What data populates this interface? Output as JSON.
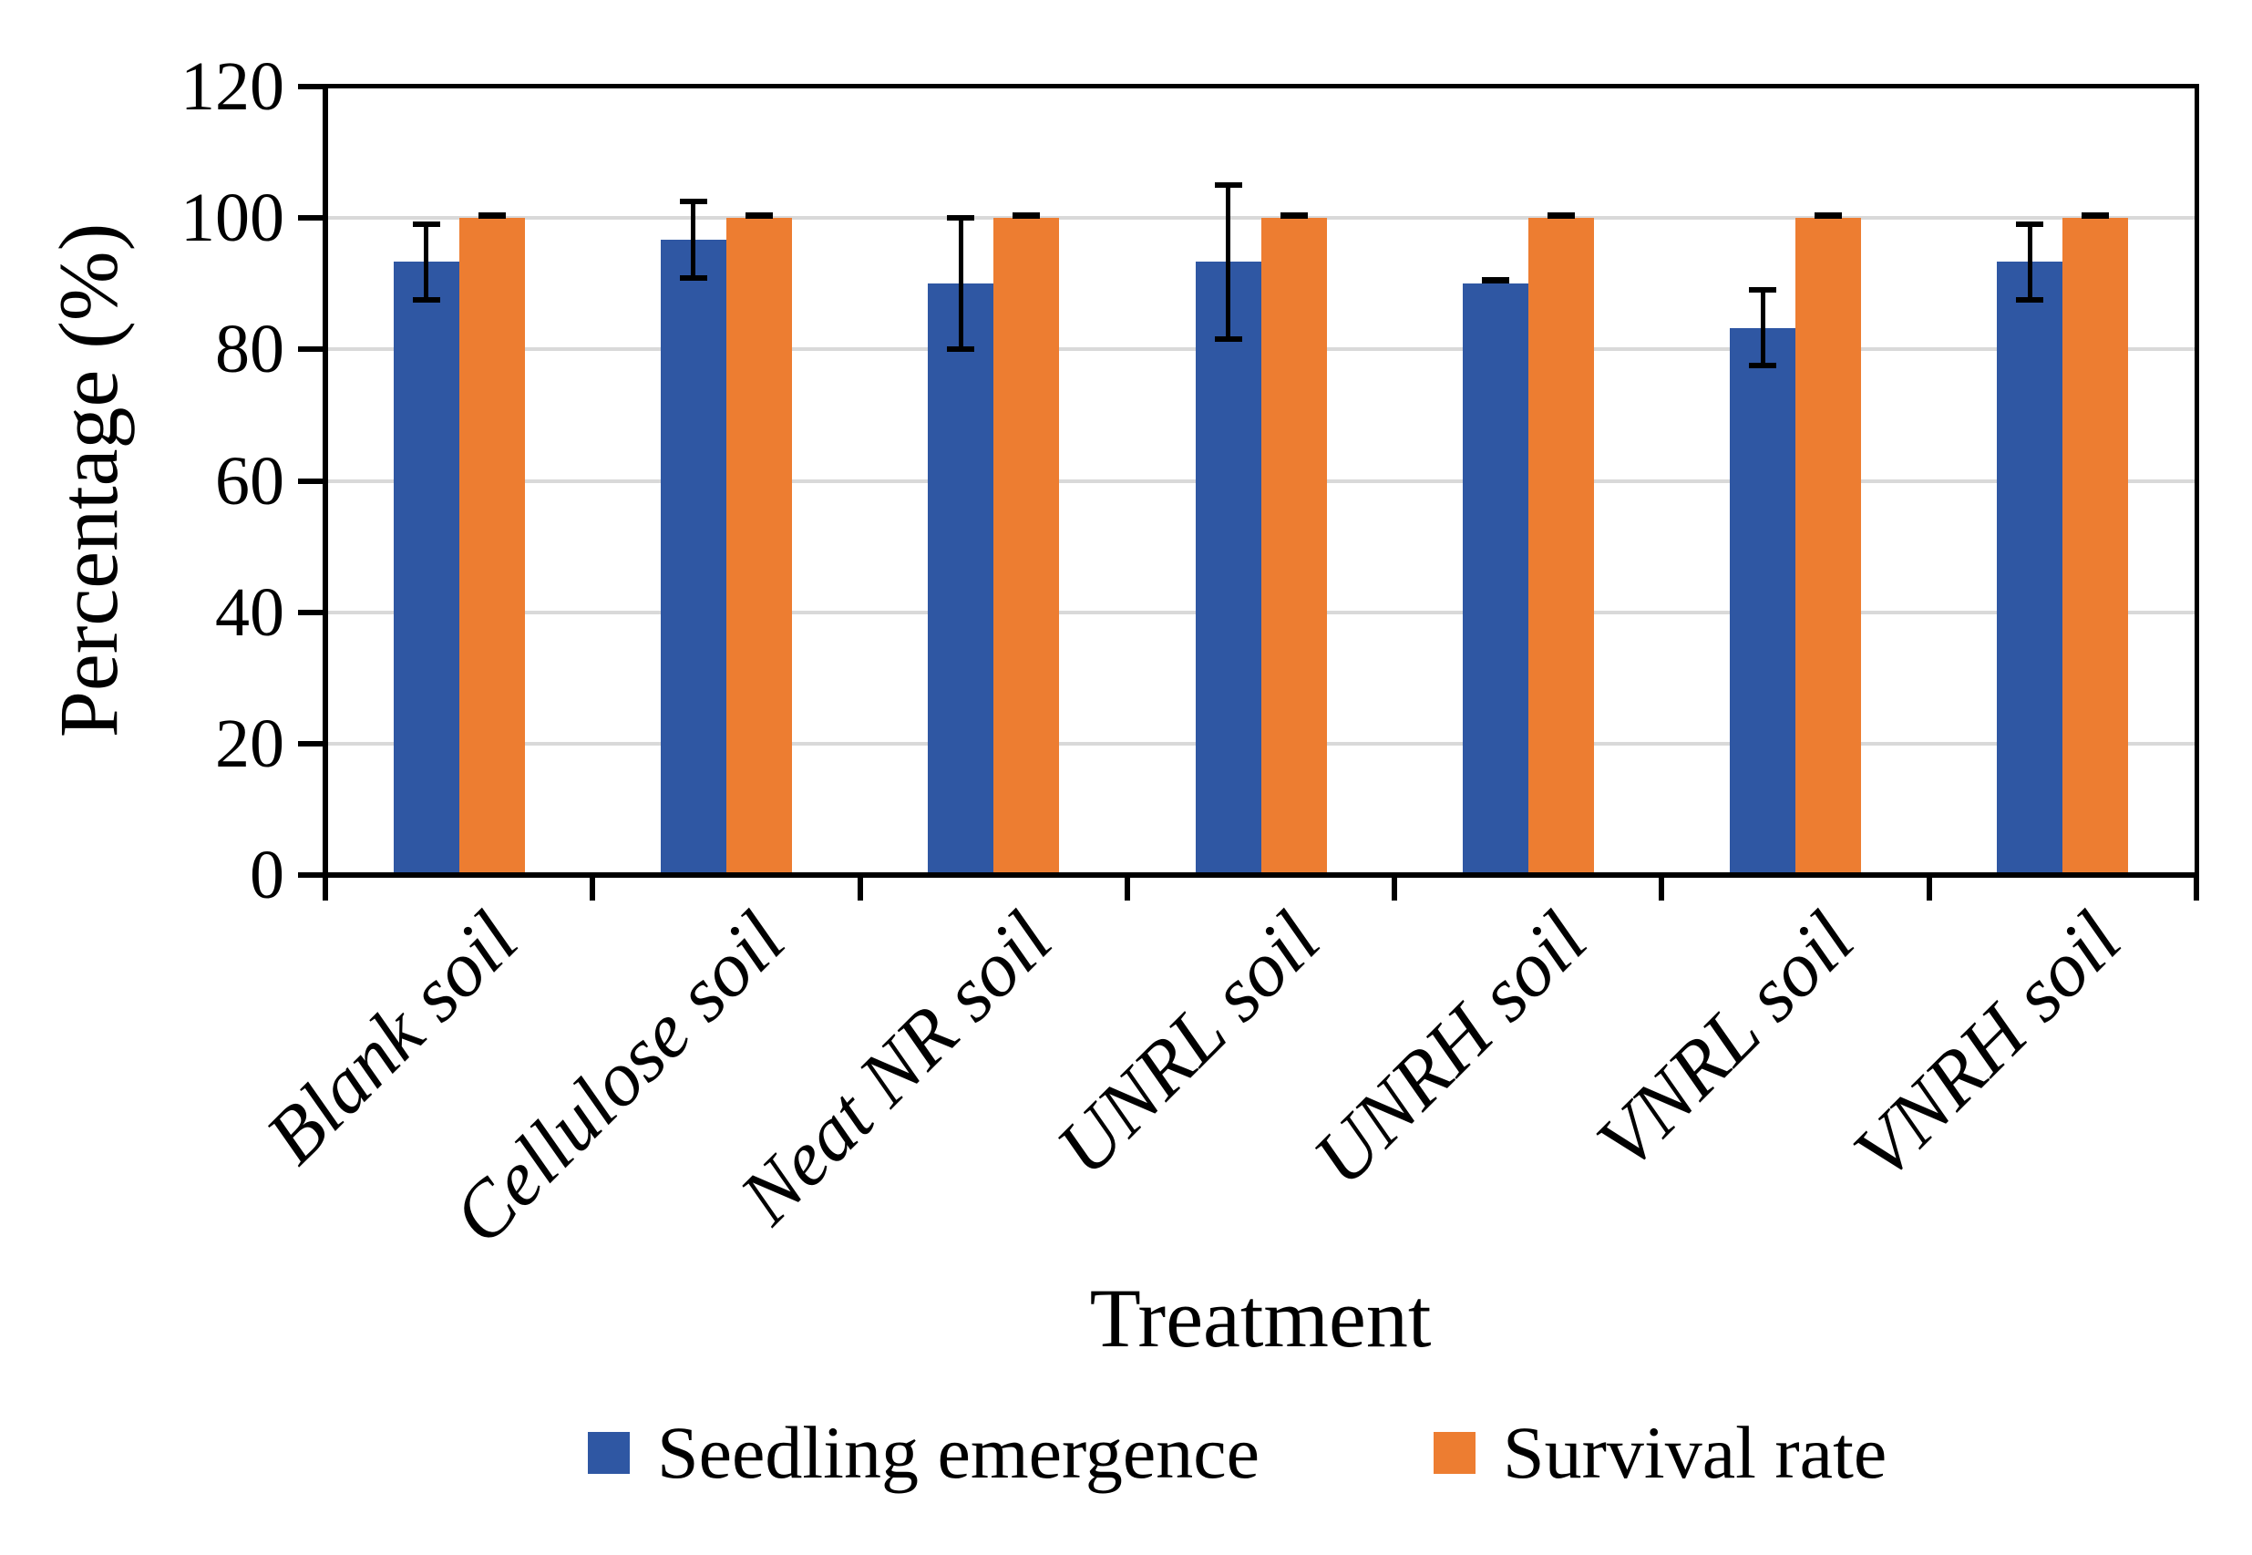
{
  "chart_data": {
    "type": "bar",
    "title": "",
    "categories": [
      "Blank soil",
      "Cellulose soil",
      "Neat NR soil",
      "UNRL soil",
      "UNRH soil",
      "VNRL soil",
      "VNRH soil"
    ],
    "series": [
      {
        "name": "Seedling emergence",
        "color": "#2F57A3",
        "values": [
          93.3,
          96.7,
          90,
          93.3,
          90,
          83.3,
          93.3
        ],
        "errors": [
          5.8,
          5.8,
          10,
          11.7,
          0.5,
          5.8,
          5.8
        ]
      },
      {
        "name": "Survival rate",
        "color": "#ED7D31",
        "values": [
          100,
          100,
          100,
          100,
          100,
          100,
          100
        ],
        "errors": [
          0.3,
          0.3,
          0.3,
          0.3,
          0.3,
          0.3,
          0.3
        ]
      }
    ],
    "xlabel": "Treatment",
    "ylabel": "Percentage (%)",
    "ylim": [
      0,
      120
    ],
    "ytick_step": 20,
    "y_ticks": [
      0,
      20,
      40,
      60,
      80,
      100,
      120
    ],
    "grid": true,
    "gridline_color": "#D9D9D9",
    "axis_color": "#000000",
    "legend_position": "bottom"
  }
}
